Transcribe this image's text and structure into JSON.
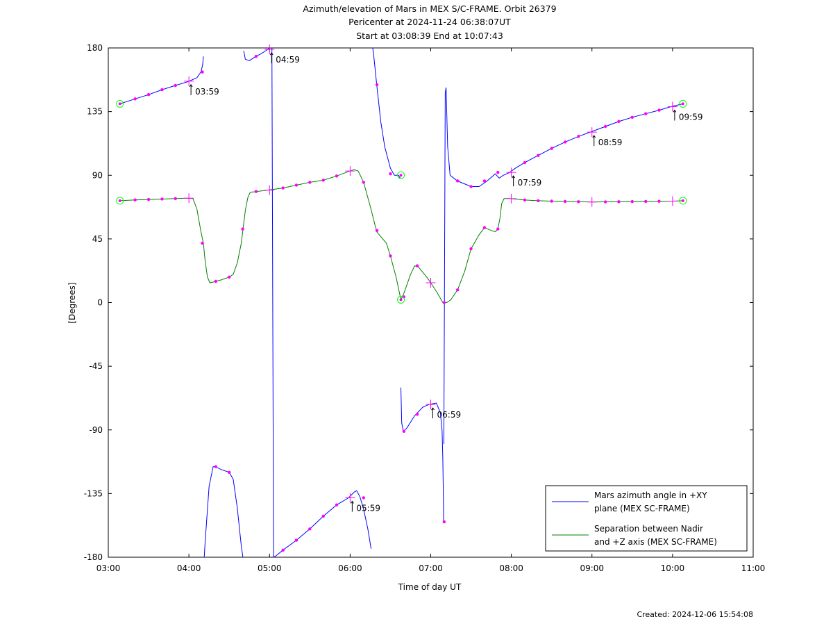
{
  "chart_data": {
    "type": "line",
    "title": [
      "Azimuth/elevation of Mars in MEX S/C-FRAME.  Orbit 26379",
      "Pericenter at 2024-11-24 06:38:07UT",
      "Start at 03:08:39 End at 10:07:43"
    ],
    "xlabel": "Time of day UT",
    "ylabel": "[Degrees]",
    "xlim": [
      3,
      11
    ],
    "ylim": [
      -180,
      180
    ],
    "xticks": [
      {
        "v": 3,
        "label": "03:00"
      },
      {
        "v": 4,
        "label": "04:00"
      },
      {
        "v": 5,
        "label": "05:00"
      },
      {
        "v": 6,
        "label": "06:00"
      },
      {
        "v": 7,
        "label": "07:00"
      },
      {
        "v": 8,
        "label": "08:00"
      },
      {
        "v": 9,
        "label": "09:00"
      },
      {
        "v": 10,
        "label": "10:00"
      },
      {
        "v": 11,
        "label": "11:00"
      }
    ],
    "yticks": [
      {
        "v": 180,
        "label": "180"
      },
      {
        "v": 135,
        "label": "135"
      },
      {
        "v": 90,
        "label": "90"
      },
      {
        "v": 45,
        "label": "45"
      },
      {
        "v": 0,
        "label": "0"
      },
      {
        "v": -45,
        "label": "-45"
      },
      {
        "v": -90,
        "label": "-90"
      },
      {
        "v": -135,
        "label": "-135"
      },
      {
        "v": -180,
        "label": "-180"
      }
    ],
    "grid": false,
    "legend_position": "bottom-right",
    "series": [
      {
        "name": "Mars azimuth angle in +XY plane (MEX SC-FRAME)",
        "legend_lines": [
          "Mars azimuth angle in +XY",
          "plane (MEX SC-FRAME)"
        ],
        "color": "#0000ff",
        "segments": [
          [
            [
              3.144,
              140.5
            ],
            [
              3.333,
              144
            ],
            [
              3.5,
              147
            ],
            [
              3.667,
              150.5
            ],
            [
              3.833,
              153.5
            ],
            [
              3.98,
              156
            ],
            [
              4.1,
              159
            ],
            [
              4.15,
              163
            ],
            [
              4.17,
              168
            ],
            [
              4.18,
              174
            ]
          ],
          [
            [
              4.19,
              -180
            ],
            [
              4.2,
              -170
            ],
            [
              4.25,
              -130
            ],
            [
              4.3,
              -116
            ],
            [
              4.33,
              -116
            ],
            [
              4.4,
              -118
            ],
            [
              4.5,
              -120
            ],
            [
              4.55,
              -125
            ],
            [
              4.6,
              -145
            ],
            [
              4.65,
              -172
            ],
            [
              4.67,
              -180
            ]
          ],
          [
            [
              4.68,
              178
            ],
            [
              4.7,
              172
            ],
            [
              4.75,
              171
            ],
            [
              4.83,
              174
            ],
            [
              4.9,
              176
            ],
            [
              4.98,
              179
            ],
            [
              5.0,
              180
            ]
          ],
          [
            [
              5.03,
              180
            ],
            [
              5.05,
              -180
            ],
            [
              5.08,
              -179
            ],
            [
              5.167,
              -175
            ],
            [
              5.333,
              -168
            ],
            [
              5.5,
              -160
            ],
            [
              5.667,
              -151
            ],
            [
              5.833,
              -143
            ],
            [
              5.98,
              -138
            ],
            [
              6.05,
              -134
            ],
            [
              6.08,
              -133
            ],
            [
              6.12,
              -137
            ],
            [
              6.167,
              -146
            ],
            [
              6.22,
              -160
            ],
            [
              6.26,
              -174
            ]
          ],
          [
            [
              6.28,
              180
            ],
            [
              6.29,
              176
            ],
            [
              6.33,
              154
            ],
            [
              6.38,
              128
            ],
            [
              6.43,
              110
            ],
            [
              6.5,
              95
            ],
            [
              6.55,
              90
            ],
            [
              6.6,
              90
            ],
            [
              6.62,
              88
            ]
          ],
          [
            [
              6.63,
              -60
            ],
            [
              6.64,
              -85
            ],
            [
              6.66,
              -91
            ],
            [
              6.7,
              -89
            ],
            [
              6.8,
              -80
            ],
            [
              6.9,
              -74
            ],
            [
              6.98,
              -72
            ],
            [
              7.07,
              -71
            ],
            [
              7.12,
              -78
            ],
            [
              7.14,
              -90
            ],
            [
              7.15,
              -110
            ],
            [
              7.155,
              -130
            ],
            [
              7.16,
              -155
            ]
          ],
          [
            [
              7.163,
              -100
            ],
            [
              7.18,
              148
            ],
            [
              7.19,
              152
            ],
            [
              7.21,
              110
            ],
            [
              7.24,
              90
            ],
            [
              7.33,
              86
            ],
            [
              7.5,
              82
            ],
            [
              7.6,
              82
            ],
            [
              7.7,
              86
            ],
            [
              7.8,
              91
            ],
            [
              7.85,
              88
            ],
            [
              7.9,
              90
            ],
            [
              7.98,
              92
            ],
            [
              8.05,
              95
            ],
            [
              8.167,
              99
            ],
            [
              8.333,
              104
            ],
            [
              8.5,
              109
            ],
            [
              8.667,
              113.5
            ],
            [
              8.833,
              117.5
            ],
            [
              8.98,
              120.5
            ],
            [
              9.167,
              124.5
            ],
            [
              9.333,
              128
            ],
            [
              9.5,
              131
            ],
            [
              9.667,
              133.5
            ],
            [
              9.833,
              136
            ],
            [
              9.98,
              138.5
            ],
            [
              10.129,
              140.5
            ]
          ]
        ]
      },
      {
        "name": "Separation between Nadir and +Z axis (MEX SC-FRAME)",
        "legend_lines": [
          "Separation between Nadir",
          "and +Z axis (MEX SC-FRAME)"
        ],
        "color": "#008000",
        "segments": [
          [
            [
              3.144,
              72
            ],
            [
              3.333,
              72.6
            ],
            [
              3.5,
              72.9
            ],
            [
              3.667,
              73.2
            ],
            [
              3.833,
              73.5
            ],
            [
              3.98,
              73.8
            ],
            [
              4.05,
              73.5
            ],
            [
              4.1,
              66
            ],
            [
              4.15,
              50
            ],
            [
              4.18,
              42
            ],
            [
              4.2,
              30
            ],
            [
              4.23,
              18
            ],
            [
              4.26,
              14
            ],
            [
              4.3,
              14.5
            ],
            [
              4.333,
              15
            ],
            [
              4.4,
              16
            ],
            [
              4.5,
              18
            ],
            [
              4.55,
              20
            ],
            [
              4.6,
              28
            ],
            [
              4.65,
              42
            ],
            [
              4.667,
              50
            ],
            [
              4.7,
              65
            ],
            [
              4.73,
              74
            ],
            [
              4.76,
              78
            ],
            [
              4.833,
              78.5
            ],
            [
              4.98,
              79.5
            ],
            [
              5.167,
              81
            ],
            [
              5.333,
              83
            ],
            [
              5.5,
              85
            ],
            [
              5.667,
              86.5
            ],
            [
              5.833,
              89.5
            ],
            [
              5.98,
              92.7
            ],
            [
              6.05,
              94
            ],
            [
              6.1,
              93
            ],
            [
              6.167,
              85
            ],
            [
              6.25,
              68
            ],
            [
              6.33,
              50
            ],
            [
              6.45,
              42
            ],
            [
              6.5,
              33
            ],
            [
              6.57,
              18
            ],
            [
              6.63,
              2
            ],
            [
              6.67,
              7
            ],
            [
              6.75,
              20
            ],
            [
              6.8,
              26
            ],
            [
              6.85,
              25
            ],
            [
              6.95,
              18
            ],
            [
              7.0,
              14
            ],
            [
              7.08,
              7
            ],
            [
              7.15,
              0
            ],
            [
              7.2,
              0
            ],
            [
              7.25,
              2
            ],
            [
              7.333,
              9
            ],
            [
              7.42,
              22
            ],
            [
              7.5,
              38
            ],
            [
              7.6,
              48
            ],
            [
              7.667,
              53
            ],
            [
              7.75,
              51
            ],
            [
              7.8,
              50
            ],
            [
              7.833,
              52
            ],
            [
              7.86,
              60
            ],
            [
              7.88,
              70
            ],
            [
              7.91,
              73.5
            ],
            [
              7.98,
              73.5
            ],
            [
              8.167,
              72.5
            ],
            [
              8.333,
              72
            ],
            [
              8.5,
              71.7
            ],
            [
              8.667,
              71.5
            ],
            [
              8.833,
              71.3
            ],
            [
              9.0,
              71.1
            ],
            [
              9.167,
              71.2
            ],
            [
              9.333,
              71.3
            ],
            [
              9.5,
              71.4
            ],
            [
              9.667,
              71.5
            ],
            [
              9.833,
              71.6
            ],
            [
              10.0,
              71.7
            ],
            [
              10.129,
              72
            ]
          ]
        ]
      }
    ],
    "markers": {
      "dot_color": "#ff00ff",
      "circle_color": "#00ff00",
      "circles": [
        [
          3.144,
          140.5
        ],
        [
          3.144,
          72
        ],
        [
          10.129,
          140.5
        ],
        [
          10.129,
          72
        ],
        [
          6.63,
          90
        ],
        [
          6.63,
          2
        ]
      ],
      "crosses": [
        [
          4.0,
          156.5
        ],
        [
          4.0,
          73.8
        ],
        [
          5.0,
          179
        ],
        [
          5.0,
          79.5
        ],
        [
          6.0,
          -138
        ],
        [
          6.0,
          93
        ],
        [
          7.0,
          -72
        ],
        [
          7.0,
          14
        ],
        [
          8.0,
          92
        ],
        [
          8.0,
          73.5
        ],
        [
          9.0,
          120.5
        ],
        [
          9.0,
          71.1
        ],
        [
          10.0,
          138.5
        ],
        [
          10.0,
          71.7
        ]
      ],
      "dots": [
        [
          3.333,
          144
        ],
        [
          3.5,
          147
        ],
        [
          3.667,
          150.5
        ],
        [
          3.833,
          153.5
        ],
        [
          4.167,
          163
        ],
        [
          4.333,
          -116
        ],
        [
          4.5,
          -120
        ],
        [
          4.833,
          174
        ],
        [
          5.167,
          -175
        ],
        [
          5.333,
          -168
        ],
        [
          5.5,
          -160
        ],
        [
          5.667,
          -151
        ],
        [
          5.833,
          -143
        ],
        [
          6.167,
          -138
        ],
        [
          6.333,
          154
        ],
        [
          6.5,
          91
        ],
        [
          6.667,
          -91
        ],
        [
          6.833,
          -79
        ],
        [
          7.167,
          -155
        ],
        [
          7.333,
          86
        ],
        [
          7.5,
          82
        ],
        [
          7.667,
          86
        ],
        [
          7.833,
          92
        ],
        [
          8.167,
          99
        ],
        [
          8.333,
          104
        ],
        [
          8.5,
          109
        ],
        [
          8.667,
          113.5
        ],
        [
          8.833,
          117.5
        ],
        [
          9.167,
          124.5
        ],
        [
          9.333,
          128
        ],
        [
          9.5,
          131
        ],
        [
          9.667,
          133.5
        ],
        [
          9.833,
          136
        ],
        [
          3.333,
          72.6
        ],
        [
          3.5,
          72.9
        ],
        [
          3.667,
          73.2
        ],
        [
          3.833,
          73.5
        ],
        [
          4.167,
          42
        ],
        [
          4.333,
          15
        ],
        [
          4.5,
          18
        ],
        [
          4.667,
          52
        ],
        [
          4.833,
          78.5
        ],
        [
          5.167,
          81
        ],
        [
          5.333,
          83
        ],
        [
          5.5,
          85
        ],
        [
          5.667,
          86.5
        ],
        [
          5.833,
          89.5
        ],
        [
          6.167,
          85
        ],
        [
          6.333,
          51
        ],
        [
          6.5,
          33
        ],
        [
          6.667,
          4
        ],
        [
          6.833,
          26
        ],
        [
          7.167,
          0
        ],
        [
          7.333,
          9
        ],
        [
          7.5,
          38
        ],
        [
          7.667,
          53
        ],
        [
          7.833,
          52
        ],
        [
          8.167,
          72.5
        ],
        [
          8.333,
          72
        ],
        [
          8.5,
          71.7
        ],
        [
          8.667,
          71.5
        ],
        [
          8.833,
          71.3
        ],
        [
          9.167,
          71.2
        ],
        [
          9.333,
          71.3
        ],
        [
          9.5,
          71.4
        ],
        [
          9.667,
          71.5
        ],
        [
          9.833,
          71.6
        ]
      ]
    },
    "annotations": [
      {
        "x": 4.0,
        "y": 156.5,
        "label": "03:59"
      },
      {
        "x": 5.0,
        "y": 179,
        "label": "04:59"
      },
      {
        "x": 6.0,
        "y": -138,
        "label": "05:59"
      },
      {
        "x": 7.0,
        "y": -72,
        "label": "06:59"
      },
      {
        "x": 8.0,
        "y": 92,
        "label": "07:59"
      },
      {
        "x": 9.0,
        "y": 120.5,
        "label": "08:59"
      },
      {
        "x": 10.0,
        "y": 138.5,
        "label": "09:59"
      }
    ],
    "footer": "Created: 2024-12-06 15:54:08"
  }
}
